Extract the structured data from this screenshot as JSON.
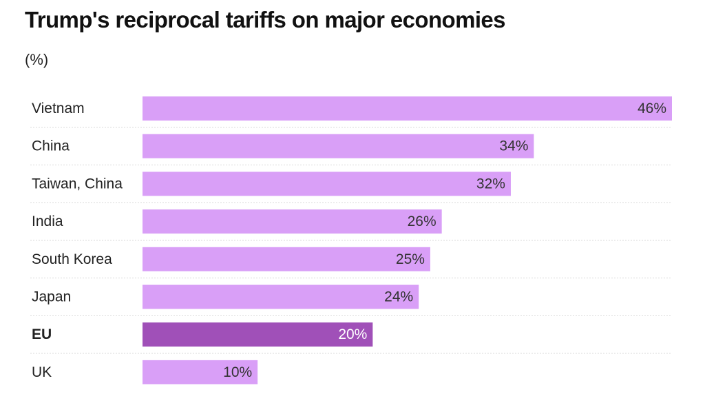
{
  "title": "Trump's reciprocal tariffs on major economies",
  "subtitle": "(%)",
  "colors": {
    "bar": "#d99ff7",
    "highlight_bar": "#a050b8"
  },
  "chart_data": {
    "type": "bar",
    "orientation": "horizontal",
    "title": "Trump's reciprocal tariffs on major economies",
    "unit": "(%)",
    "categories": [
      "Vietnam",
      "China",
      "Taiwan, China",
      "India",
      "South Korea",
      "Japan",
      "EU",
      "UK"
    ],
    "values": [
      46,
      34,
      32,
      26,
      25,
      24,
      20,
      10
    ],
    "value_labels": [
      "46%",
      "34%",
      "32%",
      "26%",
      "25%",
      "24%",
      "20%",
      "10%"
    ],
    "highlight": [
      "EU"
    ],
    "xlim": [
      0,
      46
    ],
    "grid": false,
    "legend": "none"
  }
}
